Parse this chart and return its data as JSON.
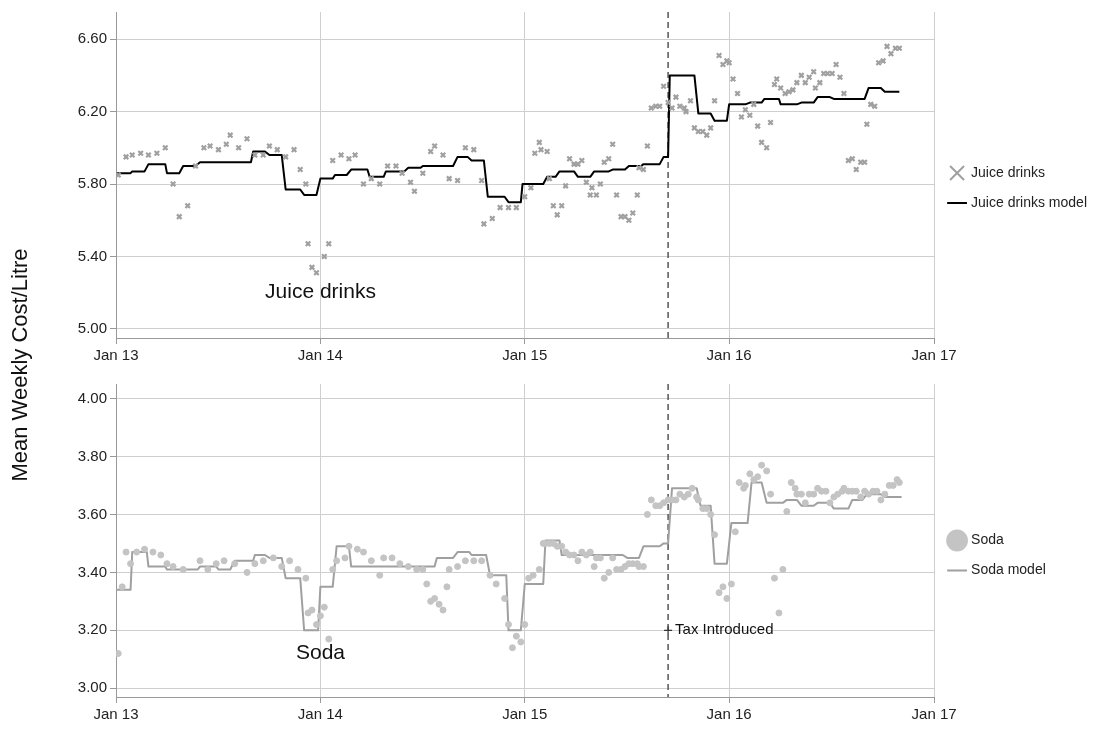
{
  "chart_data": [
    {
      "type": "scatter",
      "ylabel": "Mean Weekly Cost/Litre",
      "xlim": [
        "2013-01-01",
        "2017-01-01"
      ],
      "xticks": [
        {
          "value": "2013-01-01",
          "label": "Jan 13"
        },
        {
          "value": "2014-01-01",
          "label": "Jan 14"
        },
        {
          "value": "2015-01-01",
          "label": "Jan 15"
        },
        {
          "value": "2016-01-01",
          "label": "Jan 16"
        },
        {
          "value": "2017-01-01",
          "label": "Jan 17"
        }
      ],
      "ylim": [
        4.95,
        6.75
      ],
      "yticks": [
        {
          "value": 5,
          "label": "5.00"
        },
        {
          "value": 5.4,
          "label": "5.40"
        },
        {
          "value": 5.8,
          "label": "5.80"
        },
        {
          "value": 6.2,
          "label": "6.20"
        },
        {
          "value": 6.6,
          "label": "6.60"
        }
      ],
      "grid": true,
      "legend": "right",
      "ref_lines": [
        {
          "axis": "x",
          "value": "2015-09-14",
          "line_style": "dashed",
          "color": "#555555"
        }
      ],
      "annotations": [
        "Juice drinks"
      ],
      "series": [
        {
          "name": "Juice drinks",
          "type": "scatter",
          "marker": "cross",
          "color": "#a0a0a0",
          "x": [
            "2013-01-05",
            "2013-01-19",
            "2013-01-30",
            "2013-02-14",
            "2013-02-28",
            "2013-03-15",
            "2013-03-30",
            "2013-04-13",
            "2013-04-24",
            "2013-05-09",
            "2013-05-23",
            "2013-06-07",
            "2013-06-18",
            "2013-07-03",
            "2013-07-17",
            "2013-07-24",
            "2013-08-08",
            "2013-08-23",
            "2013-09-06",
            "2013-09-21",
            "2013-10-02",
            "2013-10-16",
            "2013-10-31",
            "2013-11-15",
            "2013-11-26",
            "2013-12-06",
            "2013-12-10",
            "2013-12-17",
            "2013-12-25",
            "2014-01-08",
            "2014-01-16",
            "2014-01-23",
            "2014-02-07",
            "2014-02-21",
            "2014-03-04",
            "2014-03-19",
            "2014-04-02",
            "2014-04-17",
            "2014-05-01",
            "2014-05-16",
            "2014-05-27",
            "2014-06-11",
            "2014-06-18",
            "2014-07-03",
            "2014-07-17",
            "2014-07-24",
            "2014-08-08",
            "2014-08-19",
            "2014-09-03",
            "2014-09-17",
            "2014-10-02",
            "2014-10-16",
            "2014-10-20",
            "2014-11-04",
            "2014-11-18",
            "2014-12-03",
            "2014-12-17",
            "2015-01-01",
            "2015-01-12",
            "2015-01-19",
            "2015-01-27",
            "2015-01-30",
            "2015-02-10",
            "2015-02-14",
            "2015-02-21",
            "2015-02-28",
            "2015-03-08",
            "2015-03-15",
            "2015-03-22",
            "2015-03-30",
            "2015-04-06",
            "2015-04-13",
            "2015-04-21",
            "2015-04-28",
            "2015-05-01",
            "2015-05-09",
            "2015-05-16",
            "2015-05-23",
            "2015-05-31",
            "2015-06-07",
            "2015-06-14",
            "2015-06-22",
            "2015-06-29",
            "2015-07-06",
            "2015-07-13",
            "2015-07-21",
            "2015-07-24",
            "2015-08-01",
            "2015-08-08",
            "2015-08-15",
            "2015-08-23",
            "2015-08-30",
            "2015-09-06",
            "2015-09-14",
            "2015-09-21",
            "2015-09-28",
            "2015-10-05",
            "2015-10-13",
            "2015-10-16",
            "2015-10-24",
            "2015-10-31",
            "2015-11-07",
            "2015-11-15",
            "2015-11-22",
            "2015-11-29",
            "2015-12-06",
            "2015-12-14",
            "2015-12-21",
            "2015-12-28",
            "2016-01-01",
            "2016-01-08",
            "2016-01-16",
            "2016-01-23",
            "2016-01-30",
            "2016-02-07",
            "2016-02-14",
            "2016-02-21",
            "2016-02-28",
            "2016-03-08",
            "2016-03-15",
            "2016-03-22",
            "2016-03-26",
            "2016-04-02",
            "2016-04-10",
            "2016-04-17",
            "2016-04-24",
            "2016-05-01",
            "2016-05-09",
            "2016-05-16",
            "2016-05-23",
            "2016-05-31",
            "2016-06-03",
            "2016-06-11",
            "2016-06-18",
            "2016-06-25",
            "2016-07-03",
            "2016-07-10",
            "2016-07-17",
            "2016-07-24",
            "2016-08-01",
            "2016-08-08",
            "2016-08-15",
            "2016-08-23",
            "2016-08-30",
            "2016-09-03",
            "2016-09-10",
            "2016-09-17",
            "2016-09-24",
            "2016-10-02",
            "2016-10-09",
            "2016-10-16",
            "2016-10-24",
            "2016-10-31"
          ],
          "values": [
            5.85,
            5.95,
            5.96,
            5.97,
            5.96,
            5.97,
            6.0,
            5.8,
            5.62,
            5.68,
            5.9,
            6.0,
            6.01,
            5.99,
            6.02,
            6.07,
            6.0,
            6.05,
            5.96,
            5.96,
            6.01,
            5.99,
            5.95,
            5.99,
            5.88,
            5.8,
            5.47,
            5.34,
            5.31,
            5.4,
            5.47,
            5.93,
            5.96,
            5.94,
            5.96,
            5.8,
            5.83,
            5.8,
            5.9,
            5.9,
            5.86,
            5.81,
            5.76,
            5.86,
            5.98,
            6.01,
            5.96,
            5.83,
            5.82,
            6.0,
            5.99,
            5.82,
            5.58,
            5.61,
            5.67,
            5.67,
            5.67,
            5.73,
            5.78,
            5.97,
            6.03,
            5.99,
            5.98,
            5.83,
            5.68,
            5.63,
            5.68,
            5.79,
            5.94,
            5.91,
            5.91,
            5.93,
            5.81,
            5.74,
            5.78,
            5.74,
            5.8,
            5.92,
            5.94,
            6.02,
            5.74,
            5.62,
            5.62,
            5.6,
            5.64,
            5.74,
            5.89,
            5.88,
            6.01,
            6.22,
            6.23,
            6.23,
            6.34,
            6.25,
            6.22,
            6.28,
            6.23,
            6.22,
            6.2,
            6.26,
            6.11,
            6.09,
            6.09,
            6.07,
            6.11,
            6.26,
            6.51,
            6.46,
            6.48,
            6.47,
            6.38,
            6.3,
            6.17,
            6.21,
            6.18,
            6.24,
            6.12,
            6.03,
            6.0,
            6.14,
            6.35,
            6.38,
            6.33,
            6.3,
            6.31,
            6.32,
            6.36,
            6.4,
            6.36,
            6.39,
            6.42,
            6.33,
            6.36,
            6.41,
            6.41,
            6.41,
            6.46,
            6.39,
            6.3,
            5.93,
            5.94,
            5.88,
            5.92,
            5.92,
            6.13,
            6.24,
            6.23,
            6.47,
            6.48,
            6.56,
            6.52,
            6.55,
            6.55
          ]
        },
        {
          "name": "Juice drinks model",
          "type": "line",
          "marker": "none",
          "line_style": "solid",
          "color": "#000000",
          "x": [
            "2013-01-01",
            "2013-01-27",
            "2013-01-30",
            "2013-02-21",
            "2013-02-28",
            "2013-03-30",
            "2013-04-02",
            "2013-04-24",
            "2013-05-01",
            "2013-05-23",
            "2013-05-31",
            "2013-08-30",
            "2013-09-03",
            "2013-09-24",
            "2013-10-02",
            "2013-10-24",
            "2013-10-31",
            "2013-11-26",
            "2013-12-03",
            "2013-12-25",
            "2014-01-01",
            "2014-01-23",
            "2014-01-27",
            "2014-02-17",
            "2014-02-25",
            "2014-03-26",
            "2014-03-30",
            "2014-04-24",
            "2014-04-28",
            "2014-05-31",
            "2014-06-07",
            "2014-06-29",
            "2014-07-03",
            "2014-08-26",
            "2014-09-03",
            "2014-09-21",
            "2014-09-28",
            "2014-10-20",
            "2014-10-27",
            "2014-11-26",
            "2014-12-03",
            "2014-12-25",
            "2014-12-28",
            "2015-02-03",
            "2015-02-10",
            "2015-02-25",
            "2015-03-04",
            "2015-03-30",
            "2015-04-06",
            "2015-04-28",
            "2015-05-05",
            "2015-05-31",
            "2015-06-07",
            "2015-06-29",
            "2015-07-06",
            "2015-07-28",
            "2015-08-01",
            "2015-08-30",
            "2015-09-06",
            "2015-09-14",
            "2015-09-17",
            "2015-10-31",
            "2015-11-07",
            "2015-11-29",
            "2015-12-06",
            "2015-12-28",
            "2016-01-01",
            "2016-01-30",
            "2016-02-07",
            "2016-02-28",
            "2016-03-04",
            "2016-03-30",
            "2016-04-02",
            "2016-05-01",
            "2016-05-09",
            "2016-05-31",
            "2016-06-07",
            "2016-06-29",
            "2016-07-06",
            "2016-08-30",
            "2016-09-06",
            "2016-09-28",
            "2016-10-05",
            "2016-10-31"
          ],
          "values": [
            5.86,
            5.86,
            5.87,
            5.87,
            5.91,
            5.91,
            5.86,
            5.86,
            5.9,
            5.9,
            5.92,
            5.92,
            5.98,
            5.98,
            5.96,
            5.96,
            5.77,
            5.77,
            5.74,
            5.74,
            5.83,
            5.83,
            5.85,
            5.85,
            5.88,
            5.88,
            5.84,
            5.84,
            5.87,
            5.87,
            5.89,
            5.89,
            5.9,
            5.9,
            5.95,
            5.95,
            5.93,
            5.93,
            5.73,
            5.73,
            5.7,
            5.7,
            5.8,
            5.8,
            5.84,
            5.84,
            5.87,
            5.87,
            5.84,
            5.84,
            5.87,
            5.87,
            5.88,
            5.88,
            5.9,
            5.9,
            5.91,
            5.91,
            5.95,
            5.95,
            6.4,
            6.4,
            6.19,
            6.19,
            6.15,
            6.15,
            6.24,
            6.24,
            6.25,
            6.25,
            6.27,
            6.27,
            6.24,
            6.24,
            6.25,
            6.25,
            6.28,
            6.28,
            6.27,
            6.27,
            6.33,
            6.33,
            6.31,
            6.31
          ]
        }
      ]
    },
    {
      "type": "scatter",
      "xlim": [
        "2013-01-01",
        "2017-01-01"
      ],
      "xticks": [
        {
          "value": "2013-01-01",
          "label": "Jan 13"
        },
        {
          "value": "2014-01-01",
          "label": "Jan 14"
        },
        {
          "value": "2015-01-01",
          "label": "Jan 15"
        },
        {
          "value": "2016-01-01",
          "label": "Jan 16"
        },
        {
          "value": "2017-01-01",
          "label": "Jan 17"
        }
      ],
      "ylim": [
        2.97,
        4.05
      ],
      "yticks": [
        {
          "value": 3,
          "label": "3.00"
        },
        {
          "value": 3.2,
          "label": "3.20"
        },
        {
          "value": 3.4,
          "label": "3.40"
        },
        {
          "value": 3.6,
          "label": "3.60"
        },
        {
          "value": 3.8,
          "label": "3.80"
        },
        {
          "value": 4,
          "label": "4.00"
        }
      ],
      "grid": true,
      "legend": "right",
      "ref_lines": [
        {
          "axis": "x",
          "value": "2015-09-14",
          "line_style": "dashed",
          "color": "#555555"
        }
      ],
      "annotations": [
        "Soda",
        {
          "text": "Tax Introduced",
          "x": "2015-09-14",
          "y": 3.2
        }
      ],
      "series": [
        {
          "name": "Soda",
          "type": "scatter",
          "marker": "circle",
          "color": "#c4c4c4",
          "x": [
            "2013-01-05",
            "2013-01-12",
            "2013-01-19",
            "2013-01-27",
            "2013-02-07",
            "2013-02-21",
            "2013-03-08",
            "2013-03-22",
            "2013-04-02",
            "2013-04-13",
            "2013-05-01",
            "2013-05-31",
            "2013-06-14",
            "2013-06-29",
            "2013-07-13",
            "2013-08-01",
            "2013-08-23",
            "2013-09-06",
            "2013-09-21",
            "2013-10-09",
            "2013-10-24",
            "2013-11-07",
            "2013-11-22",
            "2013-12-06",
            "2013-12-10",
            "2013-12-17",
            "2013-12-25",
            "2014-01-01",
            "2014-01-08",
            "2014-01-16",
            "2014-01-23",
            "2014-01-30",
            "2014-02-14",
            "2014-02-21",
            "2014-03-08",
            "2014-03-19",
            "2014-04-02",
            "2014-04-17",
            "2014-04-24",
            "2014-05-09",
            "2014-05-23",
            "2014-06-07",
            "2014-06-22",
            "2014-07-03",
            "2014-07-10",
            "2014-07-17",
            "2014-07-24",
            "2014-08-01",
            "2014-08-08",
            "2014-08-15",
            "2014-08-19",
            "2014-09-03",
            "2014-09-17",
            "2014-10-02",
            "2014-10-16",
            "2014-10-31",
            "2014-11-11",
            "2014-11-26",
            "2014-12-03",
            "2014-12-10",
            "2014-12-17",
            "2014-12-25",
            "2015-01-01",
            "2015-01-08",
            "2015-01-16",
            "2015-01-27",
            "2015-02-03",
            "2015-02-07",
            "2015-02-14",
            "2015-02-21",
            "2015-02-28",
            "2015-03-08",
            "2015-03-15",
            "2015-03-22",
            "2015-03-30",
            "2015-04-06",
            "2015-04-13",
            "2015-04-21",
            "2015-04-28",
            "2015-05-05",
            "2015-05-09",
            "2015-05-16",
            "2015-05-23",
            "2015-05-31",
            "2015-06-07",
            "2015-06-14",
            "2015-06-22",
            "2015-06-29",
            "2015-07-06",
            "2015-07-13",
            "2015-07-21",
            "2015-07-24",
            "2015-08-01",
            "2015-08-08",
            "2015-08-15",
            "2015-08-23",
            "2015-08-30",
            "2015-09-06",
            "2015-09-14",
            "2015-09-21",
            "2015-09-28",
            "2015-10-05",
            "2015-10-13",
            "2015-10-20",
            "2015-10-27",
            "2015-11-04",
            "2015-11-07",
            "2015-11-15",
            "2015-11-22",
            "2015-11-29",
            "2015-12-06",
            "2015-12-14",
            "2015-12-21",
            "2015-12-28",
            "2016-01-05",
            "2016-01-12",
            "2016-01-19",
            "2016-01-27",
            "2016-01-30",
            "2016-02-07",
            "2016-02-14",
            "2016-02-21",
            "2016-02-28",
            "2016-03-08",
            "2016-03-15",
            "2016-03-22",
            "2016-03-30",
            "2016-04-06",
            "2016-04-13",
            "2016-04-21",
            "2016-04-28",
            "2016-05-01",
            "2016-05-09",
            "2016-05-16",
            "2016-05-23",
            "2016-05-31",
            "2016-06-07",
            "2016-06-14",
            "2016-06-22",
            "2016-06-29",
            "2016-07-06",
            "2016-07-13",
            "2016-07-21",
            "2016-07-24",
            "2016-08-01",
            "2016-08-08",
            "2016-08-15",
            "2016-08-23",
            "2016-08-30",
            "2016-09-06",
            "2016-09-14",
            "2016-09-21",
            "2016-09-28",
            "2016-10-05",
            "2016-10-13",
            "2016-10-20",
            "2016-10-27",
            "2016-10-31"
          ],
          "values": [
            3.12,
            3.35,
            3.47,
            3.43,
            3.47,
            3.48,
            3.47,
            3.46,
            3.43,
            3.42,
            3.41,
            3.44,
            3.41,
            3.43,
            3.44,
            3.43,
            3.4,
            3.43,
            3.44,
            3.45,
            3.42,
            3.44,
            3.41,
            3.38,
            3.26,
            3.27,
            3.22,
            3.25,
            3.28,
            3.17,
            3.41,
            3.44,
            3.45,
            3.49,
            3.48,
            3.47,
            3.44,
            3.39,
            3.45,
            3.45,
            3.43,
            3.42,
            3.41,
            3.41,
            3.36,
            3.3,
            3.31,
            3.29,
            3.27,
            3.35,
            3.41,
            3.42,
            3.44,
            3.44,
            3.44,
            3.39,
            3.36,
            3.31,
            3.22,
            3.14,
            3.18,
            3.16,
            3.22,
            3.38,
            3.39,
            3.41,
            3.5,
            3.5,
            3.5,
            3.5,
            3.49,
            3.49,
            3.47,
            3.46,
            3.46,
            3.44,
            3.47,
            3.46,
            3.47,
            3.42,
            3.45,
            3.45,
            3.38,
            3.4,
            3.45,
            3.41,
            3.41,
            3.42,
            3.43,
            3.43,
            3.43,
            3.42,
            3.42,
            3.6,
            3.65,
            3.63,
            3.63,
            3.64,
            3.65,
            3.65,
            3.65,
            3.67,
            3.66,
            3.67,
            3.69,
            3.66,
            3.65,
            3.62,
            3.62,
            3.6,
            3.53,
            3.33,
            3.35,
            3.31,
            3.36,
            3.54,
            3.71,
            3.69,
            3.7,
            3.74,
            3.72,
            3.73,
            3.77,
            3.75,
            3.67,
            3.38,
            3.26,
            3.41,
            3.61,
            3.71,
            3.69,
            3.67,
            3.67,
            3.64,
            3.67,
            3.67,
            3.69,
            3.68,
            3.68,
            3.64,
            3.66,
            3.67,
            3.68,
            3.69,
            3.68,
            3.68,
            3.68,
            3.66,
            3.68,
            3.67,
            3.68,
            3.68,
            3.65,
            3.67,
            3.7,
            3.7,
            3.72,
            3.71
          ]
        },
        {
          "name": "Soda model",
          "type": "line",
          "marker": "none",
          "line_style": "solid",
          "color": "#a0a0a0",
          "x": [
            "2013-01-01",
            "2013-01-27",
            "2013-01-30",
            "2013-02-25",
            "2013-02-28",
            "2013-03-30",
            "2013-04-02",
            "2013-05-27",
            "2013-05-31",
            "2013-06-29",
            "2013-07-03",
            "2013-07-24",
            "2013-08-01",
            "2013-09-03",
            "2013-09-06",
            "2013-09-24",
            "2013-10-02",
            "2013-10-24",
            "2013-10-31",
            "2013-11-26",
            "2013-12-03",
            "2013-12-28",
            "2014-01-01",
            "2014-01-23",
            "2014-01-30",
            "2014-02-21",
            "2014-02-25",
            "2014-07-24",
            "2014-07-28",
            "2014-08-26",
            "2014-09-03",
            "2014-09-24",
            "2014-09-28",
            "2014-10-24",
            "2014-10-31",
            "2014-11-29",
            "2014-12-03",
            "2014-12-25",
            "2015-01-01",
            "2015-02-03",
            "2015-02-07",
            "2015-03-04",
            "2015-03-08",
            "2015-06-25",
            "2015-07-03",
            "2015-07-24",
            "2015-08-01",
            "2015-08-30",
            "2015-09-06",
            "2015-09-14",
            "2015-09-21",
            "2015-11-04",
            "2015-11-11",
            "2015-11-29",
            "2015-12-06",
            "2015-12-28",
            "2016-01-05",
            "2016-02-03",
            "2016-02-10",
            "2016-02-28",
            "2016-03-08",
            "2016-04-06",
            "2016-04-13",
            "2016-05-01",
            "2016-05-09",
            "2016-05-31",
            "2016-06-07",
            "2016-06-29",
            "2016-07-06",
            "2016-08-01",
            "2016-08-08",
            "2016-08-26",
            "2016-09-03",
            "2016-09-28",
            "2016-10-05",
            "2016-11-04"
          ],
          "values": [
            3.34,
            3.34,
            3.47,
            3.47,
            3.42,
            3.42,
            3.41,
            3.41,
            3.42,
            3.42,
            3.41,
            3.41,
            3.44,
            3.44,
            3.46,
            3.46,
            3.45,
            3.45,
            3.38,
            3.38,
            3.2,
            3.2,
            3.35,
            3.35,
            3.49,
            3.49,
            3.42,
            3.42,
            3.45,
            3.45,
            3.47,
            3.47,
            3.46,
            3.46,
            3.39,
            3.39,
            3.2,
            3.2,
            3.36,
            3.36,
            3.51,
            3.51,
            3.46,
            3.46,
            3.45,
            3.45,
            3.49,
            3.49,
            3.5,
            3.5,
            3.69,
            3.69,
            3.63,
            3.63,
            3.43,
            3.43,
            3.57,
            3.57,
            3.71,
            3.71,
            3.64,
            3.64,
            3.65,
            3.65,
            3.63,
            3.63,
            3.64,
            3.64,
            3.62,
            3.62,
            3.65,
            3.65,
            3.67,
            3.67,
            3.66,
            3.66
          ]
        }
      ]
    }
  ]
}
